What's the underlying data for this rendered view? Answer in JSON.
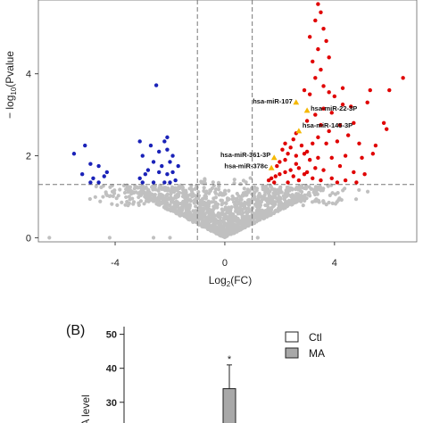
{
  "colors": {
    "up": "#e00000",
    "down": "#1a22b8",
    "ns": "#c0c0c0",
    "highlight": "#f5b800",
    "ctl": "#ffffff",
    "ma": "#a8a8a8"
  },
  "chart_data": [
    {
      "type": "scatter",
      "title": "",
      "xlabel_base": "Log",
      "xlabel_sub": "2",
      "xlabel_tail": "(FC)",
      "ylabel_prefix": "− log",
      "ylabel_sub": "10",
      "ylabel_tail": "(Pvalue",
      "xlim": [
        -6.8,
        7.0
      ],
      "ylim": [
        -0.1,
        5.8
      ],
      "x_ticks": [
        -4,
        0,
        4
      ],
      "x_tick_labels": [
        "-4",
        "0",
        "4"
      ],
      "y_ticks": [
        0,
        2,
        4
      ],
      "y_tick_labels": [
        "0",
        "2",
        "4"
      ],
      "grid": false,
      "thresholds": {
        "fc_lines": [
          -1,
          1
        ],
        "p_line": 1.3
      },
      "highlighted": [
        {
          "label": "hsa-miR-107",
          "x": 2.6,
          "y": 3.3
        },
        {
          "label": "hsa-miR-22-3P",
          "x": 3.0,
          "y": 3.1
        },
        {
          "label": "hsa-miR-145-3P",
          "x": 2.7,
          "y": 2.6
        },
        {
          "label": "hsa-miR-361-3P",
          "x": 1.8,
          "y": 1.95
        },
        {
          "label": "hsa-miR-378c",
          "x": 1.7,
          "y": 1.7
        }
      ],
      "down_points": [
        [
          -5.5,
          2.05
        ],
        [
          -5.1,
          2.25
        ],
        [
          -4.6,
          1.75
        ],
        [
          -4.9,
          1.8
        ],
        [
          -4.3,
          1.6
        ],
        [
          -4.8,
          1.45
        ],
        [
          -4.6,
          1.35
        ],
        [
          -4.9,
          1.35
        ],
        [
          -5.2,
          1.55
        ],
        [
          -4.4,
          1.5
        ],
        [
          -3.1,
          2.35
        ],
        [
          -2.7,
          2.25
        ],
        [
          -3.0,
          2.0
        ],
        [
          -2.6,
          1.85
        ],
        [
          -2.4,
          2.1
        ],
        [
          -2.2,
          2.35
        ],
        [
          -2.1,
          2.15
        ],
        [
          -2.0,
          1.85
        ],
        [
          -2.4,
          1.6
        ],
        [
          -2.1,
          1.55
        ],
        [
          -1.9,
          1.6
        ],
        [
          -2.9,
          1.55
        ],
        [
          -3.1,
          1.45
        ],
        [
          -3.0,
          1.35
        ],
        [
          -2.6,
          1.35
        ],
        [
          -2.2,
          1.35
        ],
        [
          -1.8,
          1.4
        ],
        [
          -1.9,
          2.0
        ],
        [
          -2.3,
          1.75
        ],
        [
          -1.7,
          1.75
        ],
        [
          -2.1,
          2.45
        ],
        [
          -2.5,
          3.72
        ],
        [
          -2.8,
          1.65
        ],
        [
          -2.0,
          1.35
        ]
      ],
      "up_points": [
        [
          3.4,
          5.7
        ],
        [
          3.5,
          5.5
        ],
        [
          3.3,
          5.3
        ],
        [
          3.6,
          5.1
        ],
        [
          3.1,
          4.9
        ],
        [
          3.4,
          4.6
        ],
        [
          3.7,
          4.8
        ],
        [
          3.2,
          4.3
        ],
        [
          3.5,
          4.1
        ],
        [
          3.8,
          4.4
        ],
        [
          3.3,
          3.9
        ],
        [
          3.6,
          3.7
        ],
        [
          2.9,
          3.6
        ],
        [
          3.1,
          3.5
        ],
        [
          3.8,
          3.55
        ],
        [
          4.3,
          3.65
        ],
        [
          4.0,
          3.45
        ],
        [
          6.5,
          3.9
        ],
        [
          6.0,
          3.6
        ],
        [
          5.3,
          3.6
        ],
        [
          5.2,
          3.3
        ],
        [
          4.6,
          3.2
        ],
        [
          4.3,
          3.25
        ],
        [
          3.9,
          3.05
        ],
        [
          3.6,
          3.15
        ],
        [
          3.3,
          3.0
        ],
        [
          3.0,
          2.85
        ],
        [
          3.5,
          2.75
        ],
        [
          3.8,
          2.6
        ],
        [
          4.2,
          2.75
        ],
        [
          4.7,
          2.8
        ],
        [
          5.8,
          2.8
        ],
        [
          5.9,
          2.65
        ],
        [
          4.5,
          2.5
        ],
        [
          4.9,
          2.3
        ],
        [
          5.5,
          2.25
        ],
        [
          4.1,
          2.35
        ],
        [
          3.7,
          2.3
        ],
        [
          3.2,
          2.3
        ],
        [
          2.8,
          2.25
        ],
        [
          2.5,
          2.4
        ],
        [
          2.4,
          2.2
        ],
        [
          2.3,
          2.05
        ],
        [
          2.1,
          2.15
        ],
        [
          2.2,
          1.9
        ],
        [
          2.0,
          1.85
        ],
        [
          1.9,
          1.75
        ],
        [
          2.6,
          2.0
        ],
        [
          2.9,
          2.05
        ],
        [
          3.1,
          1.9
        ],
        [
          3.4,
          1.95
        ],
        [
          3.9,
          1.95
        ],
        [
          4.4,
          2.0
        ],
        [
          5.0,
          1.95
        ],
        [
          5.4,
          2.05
        ],
        [
          4.2,
          1.75
        ],
        [
          4.7,
          1.6
        ],
        [
          5.1,
          1.55
        ],
        [
          3.6,
          1.65
        ],
        [
          3.0,
          1.6
        ],
        [
          2.7,
          1.7
        ],
        [
          2.4,
          1.65
        ],
        [
          2.2,
          1.6
        ],
        [
          2.0,
          1.55
        ],
        [
          1.85,
          1.5
        ],
        [
          1.7,
          1.45
        ],
        [
          1.6,
          1.4
        ],
        [
          1.8,
          1.35
        ],
        [
          2.3,
          1.35
        ],
        [
          2.7,
          1.4
        ],
        [
          3.2,
          1.45
        ],
        [
          3.5,
          1.4
        ],
        [
          3.9,
          1.45
        ],
        [
          4.4,
          1.4
        ],
        [
          4.8,
          1.35
        ],
        [
          4.1,
          1.35
        ],
        [
          2.6,
          1.8
        ],
        [
          2.9,
          1.55
        ],
        [
          2.5,
          1.5
        ],
        [
          3.3,
          1.7
        ],
        [
          3.0,
          2.1
        ],
        [
          2.2,
          2.3
        ],
        [
          2.6,
          2.55
        ],
        [
          3.4,
          2.45
        ]
      ],
      "ns_points": []
    },
    {
      "type": "bar",
      "panel_label": "(B)",
      "ylabel": "A level",
      "y_ticks": [
        30,
        40,
        50
      ],
      "y_tick_labels": [
        "30",
        "40",
        "50"
      ],
      "ylim": [
        26,
        52
      ],
      "series": [
        {
          "name": "Ctl",
          "values": []
        },
        {
          "name": "MA",
          "values": [
            34
          ]
        }
      ],
      "error_top": 41,
      "significance": "*"
    }
  ]
}
